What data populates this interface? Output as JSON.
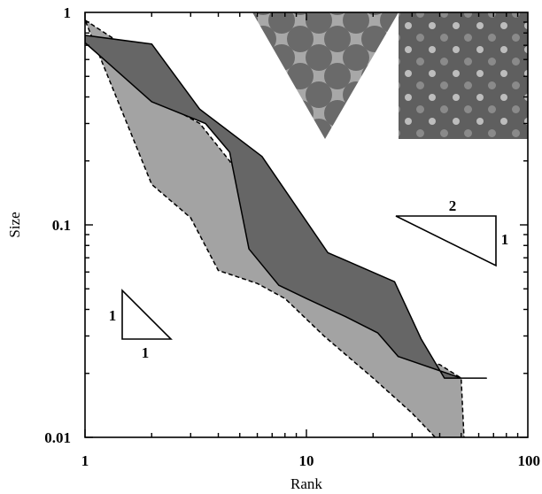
{
  "chart_data": {
    "type": "area",
    "xscale": "log",
    "yscale": "log",
    "xlim": [
      1,
      100
    ],
    "ylim": [
      0.01,
      1
    ],
    "xlabel": "Rank",
    "ylabel": "Size",
    "x_ticks": [
      {
        "value": 1,
        "label": "1"
      },
      {
        "value": 10,
        "label": "10"
      },
      {
        "value": 100,
        "label": "100"
      }
    ],
    "y_ticks": [
      {
        "value": 0.01,
        "label": "0.01"
      },
      {
        "value": 0.1,
        "label": "0.1"
      },
      {
        "value": 1,
        "label": "1"
      }
    ],
    "grid": false,
    "series": [
      {
        "fill": "#a3a3a3",
        "stroke": "dashed",
        "upper": [
          [
            1,
            0.92
          ],
          [
            1.5,
            0.7
          ],
          [
            2,
            0.4
          ],
          [
            3.3,
            0.3
          ],
          [
            4.5,
            0.2
          ],
          [
            6,
            0.12
          ],
          [
            7.7,
            0.09
          ],
          [
            10,
            0.06
          ],
          [
            13,
            0.05
          ],
          [
            20,
            0.035
          ],
          [
            26,
            0.024
          ],
          [
            40,
            0.022
          ],
          [
            50,
            0.019
          ]
        ],
        "lower": [
          [
            2,
            0.155
          ],
          [
            3,
            0.108
          ],
          [
            4,
            0.061
          ],
          [
            6,
            0.053
          ],
          [
            8,
            0.045
          ],
          [
            12,
            0.03
          ],
          [
            20,
            0.019
          ],
          [
            30,
            0.013
          ],
          [
            40,
            0.0095
          ],
          [
            52,
            0.0081
          ]
        ]
      },
      {
        "fill": "#666666",
        "stroke": "solid",
        "upper": [
          [
            1,
            0.78
          ],
          [
            2,
            0.71
          ],
          [
            3.3,
            0.35
          ],
          [
            6.3,
            0.21
          ],
          [
            12.5,
            0.074
          ],
          [
            25,
            0.054
          ],
          [
            33,
            0.029
          ],
          [
            42,
            0.019
          ],
          [
            65,
            0.019
          ]
        ],
        "lower": [
          [
            1,
            0.72
          ],
          [
            2,
            0.38
          ],
          [
            3.5,
            0.3
          ],
          [
            4.5,
            0.22
          ],
          [
            5.5,
            0.077
          ],
          [
            7.5,
            0.052
          ],
          [
            10,
            0.045
          ],
          [
            15,
            0.037
          ],
          [
            21,
            0.031
          ],
          [
            26,
            0.024
          ],
          [
            50,
            0.019
          ]
        ]
      }
    ],
    "annotations": [
      {
        "type": "slope-triangle",
        "horizontal": "1",
        "vertical": "1"
      },
      {
        "type": "slope-triangle",
        "horizontal": "2",
        "vertical": "1"
      }
    ],
    "insets": [
      "triangular lattice pattern",
      "square lattice pattern"
    ]
  }
}
